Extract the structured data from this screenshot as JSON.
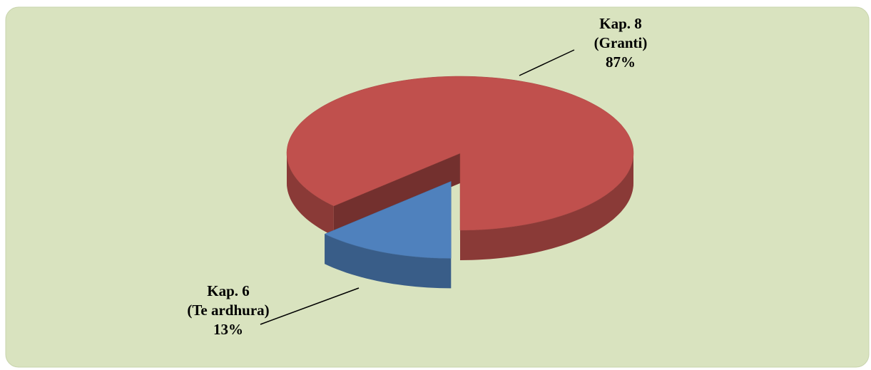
{
  "chart_data": {
    "type": "pie3d",
    "categories": [
      "Kap. 8\n(Granti)",
      "Kap. 6\n(Te ardhura)"
    ],
    "values": [
      87,
      13
    ],
    "value_labels": [
      "87%",
      "13%"
    ],
    "colors": [
      "#c0504d",
      "#4f81bd"
    ]
  }
}
